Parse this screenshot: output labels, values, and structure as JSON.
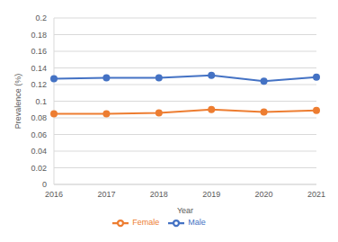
{
  "chart_data": {
    "type": "line",
    "x_label": "Year",
    "y_label": "Prevalence (%)",
    "categories": [
      "2016",
      "2017",
      "2018",
      "2019",
      "2020",
      "2021"
    ],
    "series": [
      {
        "name": "Male",
        "color": "#4472c4",
        "values": [
          0.127,
          0.128,
          0.128,
          0.131,
          0.124,
          0.129
        ],
        "marker": "circle",
        "line_style": "solid"
      },
      {
        "name": "Female",
        "color": "#ed7d31",
        "values": [
          0.085,
          0.085,
          0.086,
          0.09,
          0.087,
          0.089
        ],
        "marker": "circle",
        "line_style": "solid"
      }
    ],
    "ylim": [
      0,
      0.2
    ],
    "yticks": [
      0,
      0.02,
      0.04,
      0.06,
      0.08,
      0.1,
      0.12,
      0.14,
      0.16,
      0.18,
      0.2
    ],
    "grid": true,
    "legend": "bottom"
  }
}
